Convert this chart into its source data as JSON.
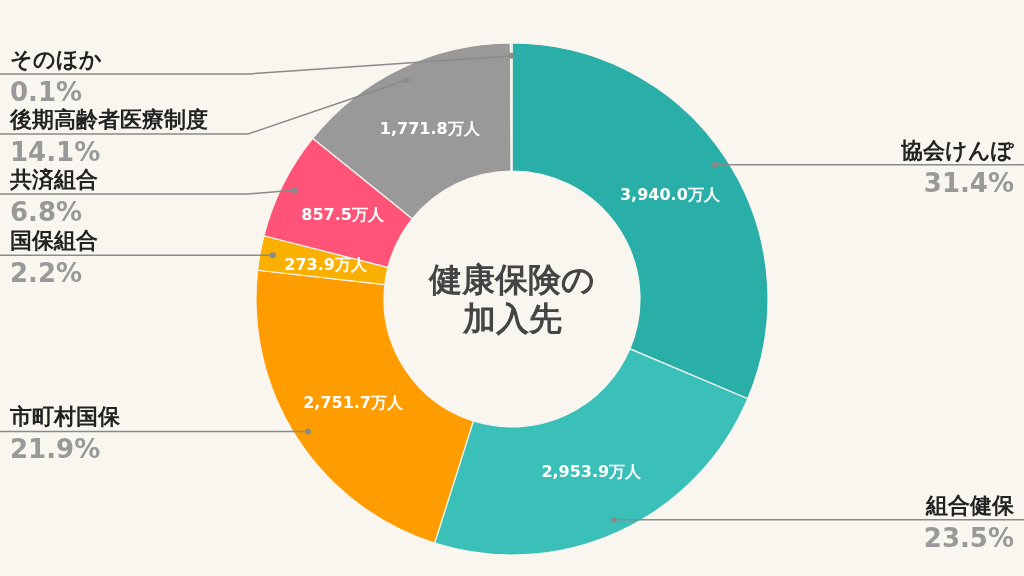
{
  "chart_data": {
    "type": "donut",
    "title": "健康保険の加入先",
    "categories": [
      "協会けんぽ",
      "組合健保",
      "市町村国保",
      "国保組合",
      "共済組合",
      "後期高齢者医療制度",
      "そのほか"
    ],
    "values": [
      3940.0,
      2953.9,
      2751.7,
      273.9,
      857.5,
      1771.8,
      12
    ],
    "colors": [
      "#2aafa8",
      "#3bc0b9",
      "#ff9c00",
      "#f9b000",
      "#ff5477",
      "#999999",
      "#d0d0d0"
    ],
    "value_labels": [
      "3,940.0万人",
      "2,953.9万人",
      "2,751.7万人",
      "273.9万人",
      "857.5万人",
      "1,771.8万人",
      null
    ],
    "annotations": [
      "31.4%",
      "23.5%",
      "21.9%",
      "2.2%",
      "6.8%",
      "14.1%",
      "0.1%"
    ]
  }
}
